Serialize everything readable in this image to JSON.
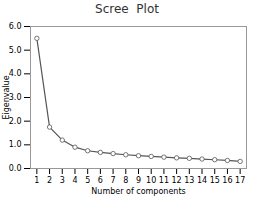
{
  "chart_data": {
    "type": "line",
    "title": "Scree  Plot",
    "xlabel": "Number of components",
    "ylabel": "Eigenvalue",
    "x": [
      1,
      2,
      3,
      4,
      5,
      6,
      7,
      8,
      9,
      10,
      11,
      12,
      13,
      14,
      15,
      16,
      17
    ],
    "values": [
      5.5,
      1.75,
      1.2,
      0.9,
      0.75,
      0.68,
      0.63,
      0.58,
      0.54,
      0.51,
      0.48,
      0.45,
      0.43,
      0.4,
      0.37,
      0.34,
      0.3
    ],
    "xlim": [
      0.5,
      17.5
    ],
    "xticks": [
      1,
      2,
      3,
      4,
      5,
      6,
      7,
      8,
      9,
      10,
      11,
      12,
      13,
      14,
      15,
      16,
      17
    ],
    "ylim": [
      0,
      6
    ],
    "yticks": [
      0,
      1,
      2,
      3,
      4,
      5,
      6
    ],
    "color": "#555555",
    "marker": "circle",
    "grid": false
  }
}
